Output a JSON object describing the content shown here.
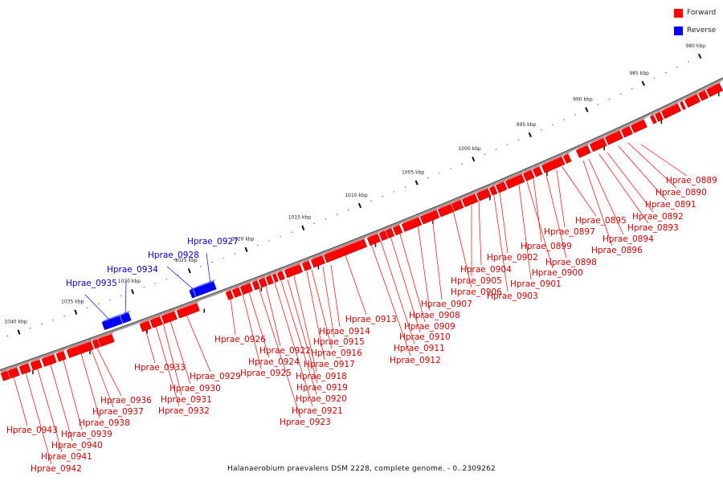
{
  "legend": {
    "forward": {
      "label": "Forward",
      "color": "#ff0000"
    },
    "reverse": {
      "label": "Reverse",
      "color": "#0000ff"
    }
  },
  "caption": "Halanaerobium praevalens DSM 2228, complete genome. - 0..2309262",
  "axis": {
    "unit": "kbp",
    "ticks": [
      {
        "kbp": 980,
        "label": "980 kbp"
      },
      {
        "kbp": 985,
        "label": "985 kbp"
      },
      {
        "kbp": 990,
        "label": "990 kbp"
      },
      {
        "kbp": 995,
        "label": "995 kbp"
      },
      {
        "kbp": 1000,
        "label": "1000 kbp"
      },
      {
        "kbp": 1005,
        "label": "1005 kbp"
      },
      {
        "kbp": 1010,
        "label": "1010 kbp"
      },
      {
        "kbp": 1015,
        "label": "1015 kbp"
      },
      {
        "kbp": 1020,
        "label": "1020 kbp"
      },
      {
        "kbp": 1025,
        "label": "1025 kbp"
      },
      {
        "kbp": 1030,
        "label": "1030 kbp"
      },
      {
        "kbp": 1035,
        "label": "1035 kbp"
      },
      {
        "kbp": 1040,
        "label": "1040 kbp"
      }
    ]
  },
  "genes": [
    {
      "name": "Hprae_0889",
      "strand": "forward"
    },
    {
      "name": "Hprae_0890",
      "strand": "forward"
    },
    {
      "name": "Hprae_0891",
      "strand": "forward"
    },
    {
      "name": "Hprae_0892",
      "strand": "forward"
    },
    {
      "name": "Hprae_0893",
      "strand": "forward"
    },
    {
      "name": "Hprae_0894",
      "strand": "forward"
    },
    {
      "name": "Hprae_0895",
      "strand": "forward"
    },
    {
      "name": "Hprae_0896",
      "strand": "forward"
    },
    {
      "name": "Hprae_0897",
      "strand": "forward"
    },
    {
      "name": "Hprae_0898",
      "strand": "forward"
    },
    {
      "name": "Hprae_0899",
      "strand": "forward"
    },
    {
      "name": "Hprae_0900",
      "strand": "forward"
    },
    {
      "name": "Hprae_0901",
      "strand": "forward"
    },
    {
      "name": "Hprae_0902",
      "strand": "forward"
    },
    {
      "name": "Hprae_0903",
      "strand": "forward"
    },
    {
      "name": "Hprae_0904",
      "strand": "forward"
    },
    {
      "name": "Hprae_0905",
      "strand": "forward"
    },
    {
      "name": "Hprae_0906",
      "strand": "forward"
    },
    {
      "name": "Hprae_0907",
      "strand": "forward"
    },
    {
      "name": "Hprae_0908",
      "strand": "forward"
    },
    {
      "name": "Hprae_0909",
      "strand": "forward"
    },
    {
      "name": "Hprae_0910",
      "strand": "forward"
    },
    {
      "name": "Hprae_0911",
      "strand": "forward"
    },
    {
      "name": "Hprae_0912",
      "strand": "forward"
    },
    {
      "name": "Hprae_0913",
      "strand": "forward"
    },
    {
      "name": "Hprae_0914",
      "strand": "forward"
    },
    {
      "name": "Hprae_0915",
      "strand": "forward"
    },
    {
      "name": "Hprae_0916",
      "strand": "forward"
    },
    {
      "name": "Hprae_0917",
      "strand": "forward"
    },
    {
      "name": "Hprae_0918",
      "strand": "forward"
    },
    {
      "name": "Hprae_0919",
      "strand": "forward"
    },
    {
      "name": "Hprae_0920",
      "strand": "forward"
    },
    {
      "name": "Hprae_0921",
      "strand": "forward"
    },
    {
      "name": "Hprae_0922",
      "strand": "forward"
    },
    {
      "name": "Hprae_0923",
      "strand": "forward"
    },
    {
      "name": "Hprae_0924",
      "strand": "forward"
    },
    {
      "name": "Hprae_0925",
      "strand": "forward"
    },
    {
      "name": "Hprae_0926",
      "strand": "forward"
    },
    {
      "name": "Hprae_0927",
      "strand": "reverse"
    },
    {
      "name": "Hprae_0928",
      "strand": "reverse"
    },
    {
      "name": "Hprae_0929",
      "strand": "forward"
    },
    {
      "name": "Hprae_0930",
      "strand": "forward"
    },
    {
      "name": "Hprae_0931",
      "strand": "forward"
    },
    {
      "name": "Hprae_0932",
      "strand": "forward"
    },
    {
      "name": "Hprae_0933",
      "strand": "forward"
    },
    {
      "name": "Hprae_0934",
      "strand": "reverse"
    },
    {
      "name": "Hprae_0935",
      "strand": "reverse"
    },
    {
      "name": "Hprae_0936",
      "strand": "forward"
    },
    {
      "name": "Hprae_0937",
      "strand": "forward"
    },
    {
      "name": "Hprae_0938",
      "strand": "forward"
    },
    {
      "name": "Hprae_0939",
      "strand": "forward"
    },
    {
      "name": "Hprae_0940",
      "strand": "forward"
    },
    {
      "name": "Hprae_0941",
      "strand": "forward"
    },
    {
      "name": "Hprae_0942",
      "strand": "forward"
    },
    {
      "name": "Hprae_0943",
      "strand": "forward"
    }
  ]
}
